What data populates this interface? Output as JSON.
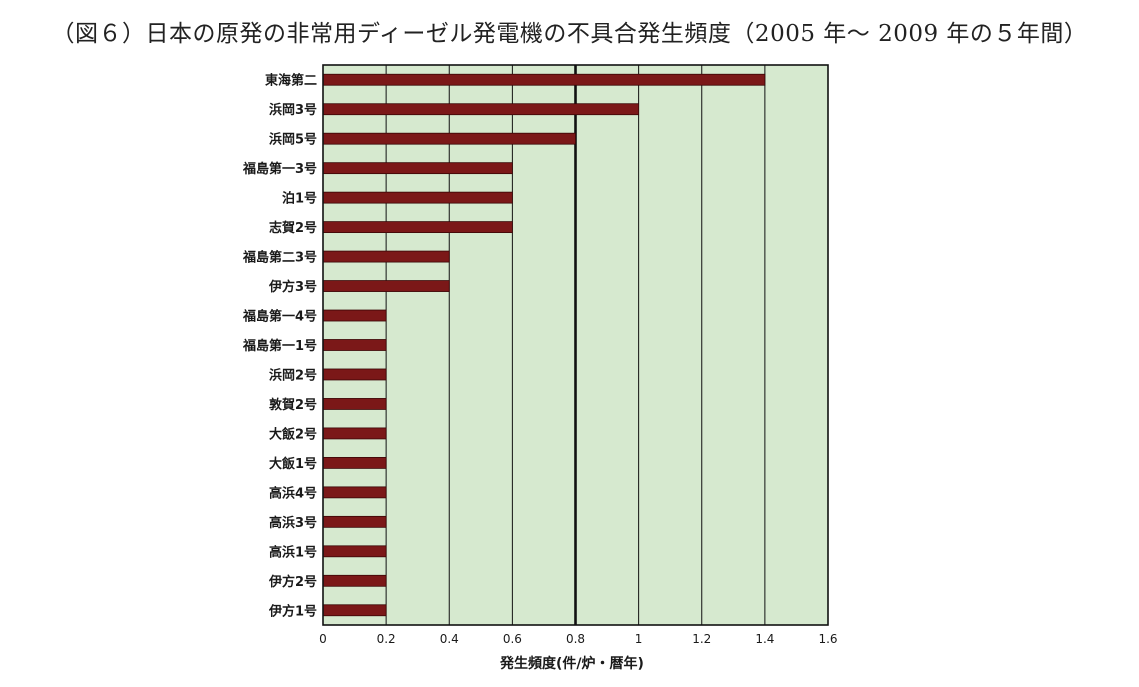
{
  "title": "（図６）日本の原発の非常用ディーゼル発電機の不具合発生頻度（2005 年～ 2009 年の５年間）",
  "colors": {
    "plot_background": "#d6e9cf",
    "bar_fill": "#7b1818",
    "bar_stroke": "#3a0606",
    "axis": "#111111"
  },
  "chart_data": {
    "type": "bar",
    "orientation": "horizontal",
    "title": "（図６）日本の原発の非常用ディーゼル発電機の不具合発生頻度（2005 年～ 2009 年の５年間）",
    "xlabel": "発生頻度(件/炉・暦年)",
    "ylabel": "",
    "xlim": [
      0,
      1.6
    ],
    "xticks": [
      0,
      0.2,
      0.4,
      0.6,
      0.8,
      1,
      1.2,
      1.4,
      1.6
    ],
    "xtick_labels": [
      "0",
      "0.2",
      "0.4",
      "0.6",
      "0.8",
      "1",
      "1.2",
      "1.4",
      "1.6"
    ],
    "grid": true,
    "emphasized_gridline": 0.8,
    "categories": [
      "東海第二",
      "浜岡3号",
      "浜岡5号",
      "福島第一3号",
      "泊1号",
      "志賀2号",
      "福島第二3号",
      "伊方3号",
      "福島第一4号",
      "福島第一1号",
      "浜岡2号",
      "敦賀2号",
      "大飯2号",
      "大飯1号",
      "高浜4号",
      "高浜3号",
      "高浜1号",
      "伊方2号",
      "伊方1号"
    ],
    "values": [
      1.4,
      1.0,
      0.8,
      0.6,
      0.6,
      0.6,
      0.4,
      0.4,
      0.2,
      0.2,
      0.2,
      0.2,
      0.2,
      0.2,
      0.2,
      0.2,
      0.2,
      0.2,
      0.2
    ]
  }
}
